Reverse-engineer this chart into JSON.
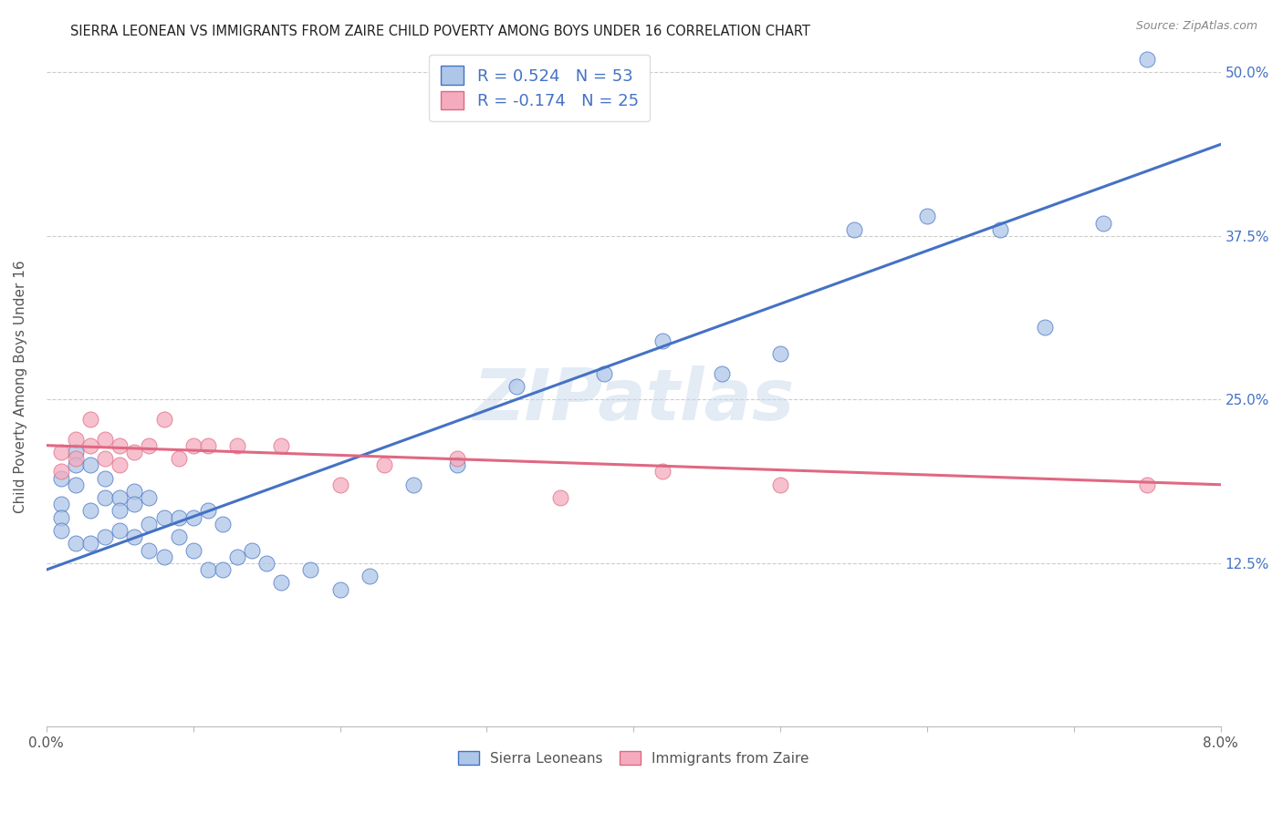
{
  "title": "SIERRA LEONEAN VS IMMIGRANTS FROM ZAIRE CHILD POVERTY AMONG BOYS UNDER 16 CORRELATION CHART",
  "source": "Source: ZipAtlas.com",
  "ylabel": "Child Poverty Among Boys Under 16",
  "xlim": [
    0.0,
    0.08
  ],
  "ylim": [
    0.0,
    0.52
  ],
  "yticks": [
    0.0,
    0.125,
    0.25,
    0.375,
    0.5
  ],
  "ytick_labels": [
    "",
    "12.5%",
    "25.0%",
    "37.5%",
    "50.0%"
  ],
  "legend1_R": "0.524",
  "legend1_N": "53",
  "legend2_R": "-0.174",
  "legend2_N": "25",
  "legend_label1": "Sierra Leoneans",
  "legend_label2": "Immigrants from Zaire",
  "blue_color": "#aec6e8",
  "pink_color": "#f4abbe",
  "blue_line_color": "#4472c4",
  "pink_line_color": "#e06882",
  "watermark": "ZIPatlas",
  "blue_x": [
    0.001,
    0.001,
    0.001,
    0.001,
    0.002,
    0.002,
    0.002,
    0.002,
    0.003,
    0.003,
    0.003,
    0.004,
    0.004,
    0.004,
    0.005,
    0.005,
    0.005,
    0.006,
    0.006,
    0.006,
    0.007,
    0.007,
    0.007,
    0.008,
    0.008,
    0.009,
    0.009,
    0.01,
    0.01,
    0.011,
    0.011,
    0.012,
    0.012,
    0.013,
    0.014,
    0.015,
    0.016,
    0.018,
    0.02,
    0.022,
    0.025,
    0.028,
    0.032,
    0.038,
    0.042,
    0.046,
    0.05,
    0.055,
    0.06,
    0.065,
    0.068,
    0.072,
    0.075
  ],
  "blue_y": [
    0.19,
    0.17,
    0.16,
    0.15,
    0.21,
    0.2,
    0.185,
    0.14,
    0.2,
    0.165,
    0.14,
    0.19,
    0.175,
    0.145,
    0.175,
    0.165,
    0.15,
    0.18,
    0.17,
    0.145,
    0.175,
    0.155,
    0.135,
    0.16,
    0.13,
    0.16,
    0.145,
    0.16,
    0.135,
    0.165,
    0.12,
    0.155,
    0.12,
    0.13,
    0.135,
    0.125,
    0.11,
    0.12,
    0.105,
    0.115,
    0.185,
    0.2,
    0.26,
    0.27,
    0.295,
    0.27,
    0.285,
    0.38,
    0.39,
    0.38,
    0.305,
    0.385,
    0.51
  ],
  "pink_x": [
    0.001,
    0.001,
    0.002,
    0.002,
    0.003,
    0.003,
    0.004,
    0.004,
    0.005,
    0.005,
    0.006,
    0.007,
    0.008,
    0.009,
    0.01,
    0.011,
    0.013,
    0.016,
    0.02,
    0.023,
    0.028,
    0.035,
    0.042,
    0.05,
    0.075
  ],
  "pink_y": [
    0.21,
    0.195,
    0.22,
    0.205,
    0.235,
    0.215,
    0.22,
    0.205,
    0.215,
    0.2,
    0.21,
    0.215,
    0.235,
    0.205,
    0.215,
    0.215,
    0.215,
    0.215,
    0.185,
    0.2,
    0.205,
    0.175,
    0.195,
    0.185,
    0.185
  ],
  "blue_trendline_x0": 0.0,
  "blue_trendline_y0": 0.12,
  "blue_trendline_x1": 0.08,
  "blue_trendline_y1": 0.445,
  "pink_trendline_x0": 0.0,
  "pink_trendline_y0": 0.215,
  "pink_trendline_x1": 0.08,
  "pink_trendline_y1": 0.185
}
